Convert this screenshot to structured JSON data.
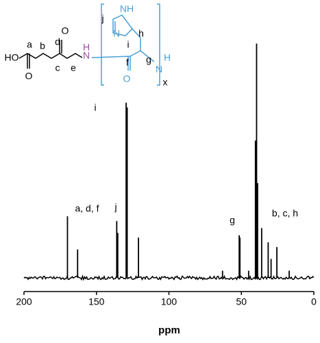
{
  "chart_data": {
    "type": "spectrum",
    "x_label": "ppm",
    "xlim": [
      200,
      0
    ],
    "xticks": [
      200,
      150,
      100,
      50,
      0
    ],
    "color": "#000000",
    "x": [
      170,
      163,
      136,
      135.3,
      129.5,
      128.8,
      121,
      63,
      51.5,
      51,
      45,
      40.3,
      39.5,
      38.8,
      36,
      31.5,
      29.5,
      25.5,
      17
    ],
    "values": [
      26,
      12,
      24,
      19,
      74,
      72,
      17,
      3,
      18,
      17,
      3,
      58,
      99,
      40,
      21,
      15,
      8,
      13,
      3
    ],
    "annotations": [
      "a, d, f",
      "j",
      "i",
      "g",
      "b, c, h"
    ],
    "structure_labels": [
      "HO",
      "O",
      "a",
      "b",
      "c",
      "d",
      "O",
      "e",
      "H",
      "N",
      "NH",
      "N",
      "j",
      "i",
      "h",
      "g",
      "f",
      "O",
      "N",
      "H",
      "x"
    ]
  }
}
